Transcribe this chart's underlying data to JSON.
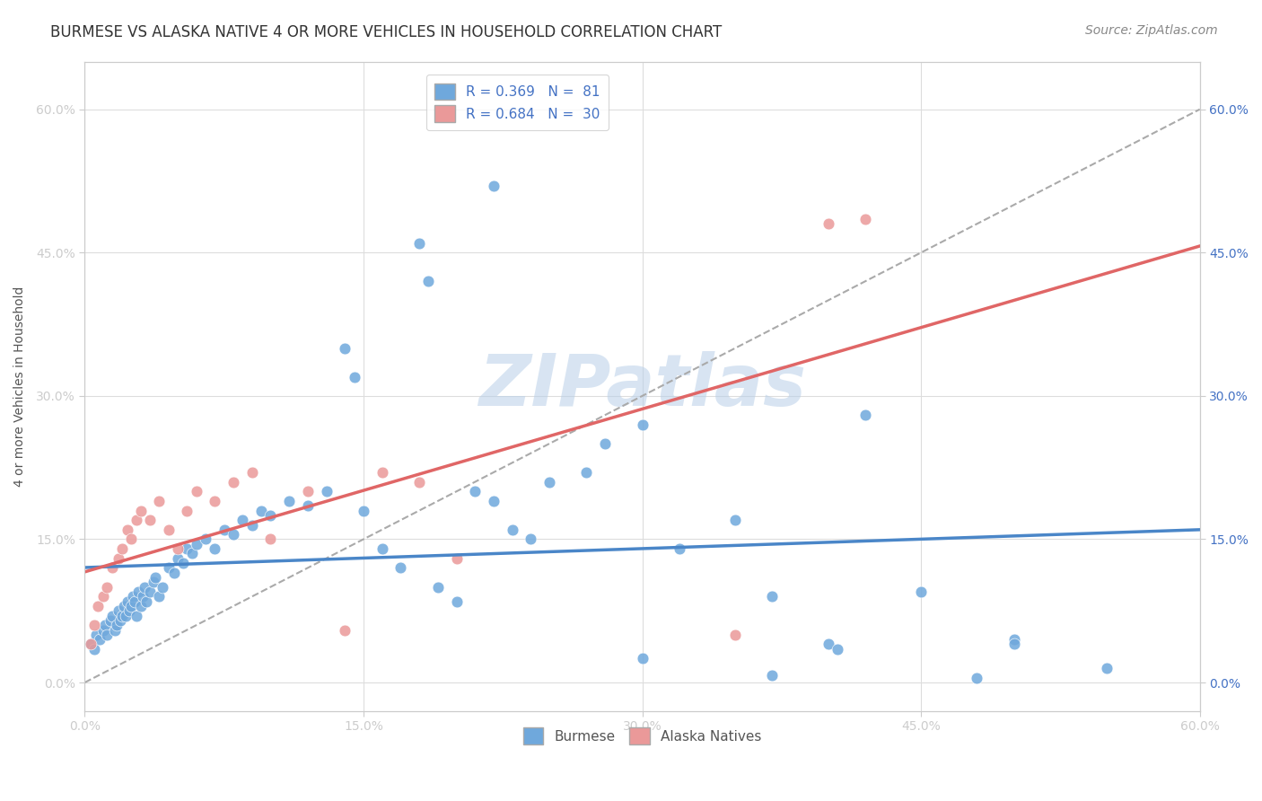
{
  "title": "BURMESE VS ALASKA NATIVE 4 OR MORE VEHICLES IN HOUSEHOLD CORRELATION CHART",
  "source": "Source: ZipAtlas.com",
  "ylabel": "4 or more Vehicles in Household",
  "xlim": [
    0.0,
    60.0
  ],
  "ylim": [
    -3.0,
    65.0
  ],
  "watermark": "ZIPatlas",
  "legend_blue_label": "R = 0.369   N =  81",
  "legend_pink_label": "R = 0.684   N =  30",
  "legend_burmese": "Burmese",
  "legend_alaska": "Alaska Natives",
  "blue_color": "#6fa8dc",
  "pink_color": "#ea9999",
  "blue_line_color": "#4a86c8",
  "pink_line_color": "#e06666",
  "dashed_line_color": "#aaaaaa",
  "title_fontsize": 12,
  "source_fontsize": 10,
  "axis_label_fontsize": 10,
  "tick_fontsize": 10,
  "legend_fontsize": 11,
  "background_color": "#ffffff",
  "grid_color": "#dddddd",
  "burmese_x": [
    0.3,
    0.5,
    0.6,
    0.8,
    1.0,
    1.1,
    1.2,
    1.4,
    1.5,
    1.6,
    1.7,
    1.8,
    1.9,
    2.0,
    2.1,
    2.2,
    2.3,
    2.4,
    2.5,
    2.6,
    2.7,
    2.8,
    2.9,
    3.0,
    3.1,
    3.2,
    3.3,
    3.5,
    3.7,
    3.8,
    4.0,
    4.2,
    4.5,
    4.8,
    5.0,
    5.3,
    5.5,
    5.8,
    6.0,
    6.5,
    7.0,
    7.5,
    8.0,
    8.5,
    9.0,
    9.5,
    10.0,
    11.0,
    12.0,
    13.0,
    14.0,
    15.0,
    16.0,
    17.0,
    18.0,
    19.0,
    20.0,
    21.0,
    22.0,
    23.0,
    24.0,
    25.0,
    27.0,
    28.0,
    30.0,
    32.0,
    35.0,
    37.0,
    40.0,
    42.0,
    45.0,
    48.0,
    50.0,
    14.5,
    18.5,
    22.0,
    30.0,
    40.5,
    50.0,
    37.0,
    55.0
  ],
  "burmese_y": [
    4.0,
    3.5,
    5.0,
    4.5,
    5.5,
    6.0,
    5.0,
    6.5,
    7.0,
    5.5,
    6.0,
    7.5,
    6.5,
    7.0,
    8.0,
    7.0,
    8.5,
    7.5,
    8.0,
    9.0,
    8.5,
    7.0,
    9.5,
    8.0,
    9.0,
    10.0,
    8.5,
    9.5,
    10.5,
    11.0,
    9.0,
    10.0,
    12.0,
    11.5,
    13.0,
    12.5,
    14.0,
    13.5,
    14.5,
    15.0,
    14.0,
    16.0,
    15.5,
    17.0,
    16.5,
    18.0,
    17.5,
    19.0,
    18.5,
    20.0,
    35.0,
    18.0,
    14.0,
    12.0,
    46.0,
    10.0,
    8.5,
    20.0,
    19.0,
    16.0,
    15.0,
    21.0,
    22.0,
    25.0,
    27.0,
    14.0,
    17.0,
    9.0,
    4.0,
    28.0,
    9.5,
    0.5,
    4.5,
    32.0,
    42.0,
    52.0,
    2.5,
    3.5,
    4.0,
    0.8,
    1.5
  ],
  "alaska_x": [
    0.3,
    0.5,
    0.7,
    1.0,
    1.2,
    1.5,
    1.8,
    2.0,
    2.3,
    2.5,
    2.8,
    3.0,
    3.5,
    4.0,
    4.5,
    5.0,
    5.5,
    6.0,
    7.0,
    8.0,
    9.0,
    10.0,
    12.0,
    14.0,
    16.0,
    18.0,
    20.0,
    35.0,
    40.0,
    42.0
  ],
  "alaska_y": [
    4.0,
    6.0,
    8.0,
    9.0,
    10.0,
    12.0,
    13.0,
    14.0,
    16.0,
    15.0,
    17.0,
    18.0,
    17.0,
    19.0,
    16.0,
    14.0,
    18.0,
    20.0,
    19.0,
    21.0,
    22.0,
    15.0,
    20.0,
    5.5,
    22.0,
    21.0,
    13.0,
    5.0,
    48.0,
    48.5
  ]
}
